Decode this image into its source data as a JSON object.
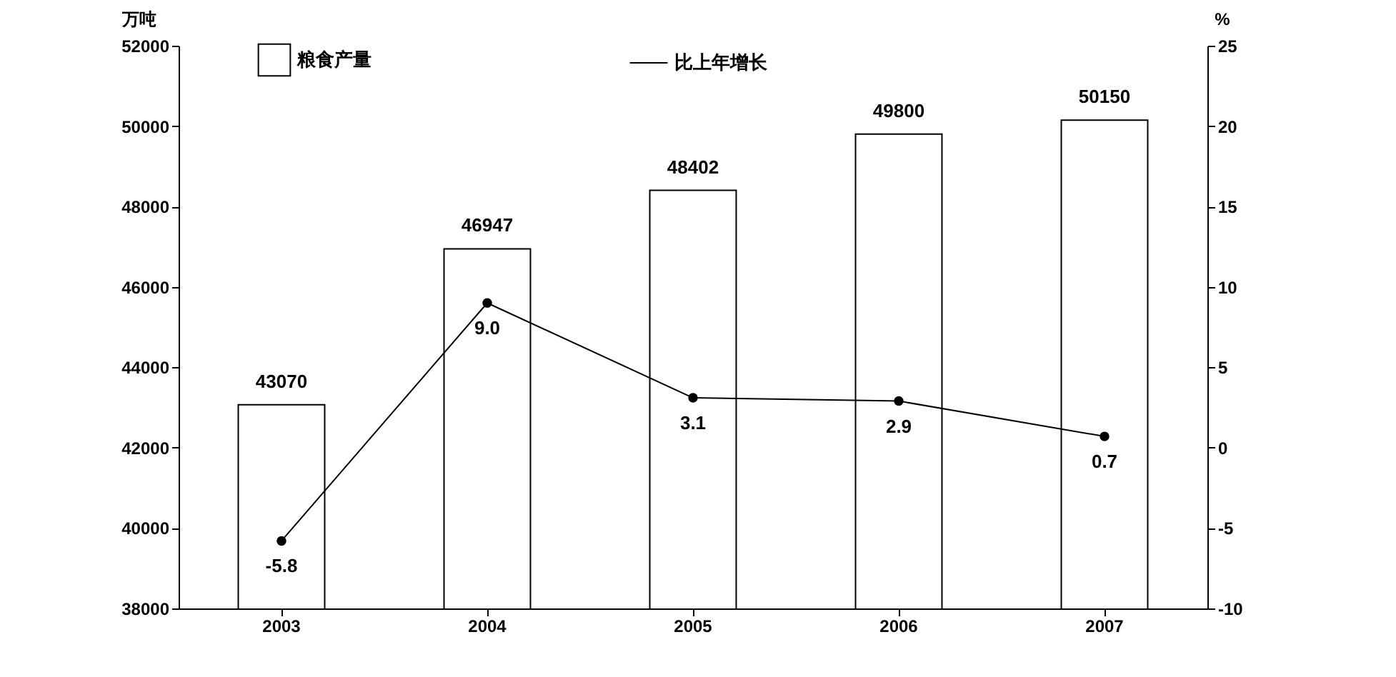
{
  "chart_data": {
    "type": "bar",
    "categories": [
      "2003",
      "2004",
      "2005",
      "2006",
      "2007"
    ],
    "ylabel": "万吨",
    "y2label": "%",
    "ylim": [
      38000,
      52000
    ],
    "yticks": [
      38000,
      40000,
      42000,
      44000,
      46000,
      48000,
      50000,
      52000
    ],
    "y2lim": [
      -10,
      25
    ],
    "y2ticks": [
      -10,
      -5,
      0,
      5,
      10,
      15,
      20,
      25
    ],
    "legend": "top",
    "marker": "circle",
    "grid": false,
    "series": [
      {
        "name": "粮食产量",
        "color": "#ffffff",
        "values": [
          43070,
          46947,
          48402,
          49800,
          50150
        ],
        "value_labels": [
          "43070",
          "46947",
          "48402",
          "49800",
          "50150"
        ]
      },
      {
        "name": "比上年增长",
        "type": "line",
        "axis": "y2",
        "color": "#000000",
        "values": [
          -5.8,
          9.0,
          3.1,
          2.9,
          0.7
        ],
        "value_labels": [
          "-5.8",
          "9.0",
          "3.1",
          "2.9",
          "0.7"
        ]
      }
    ]
  }
}
